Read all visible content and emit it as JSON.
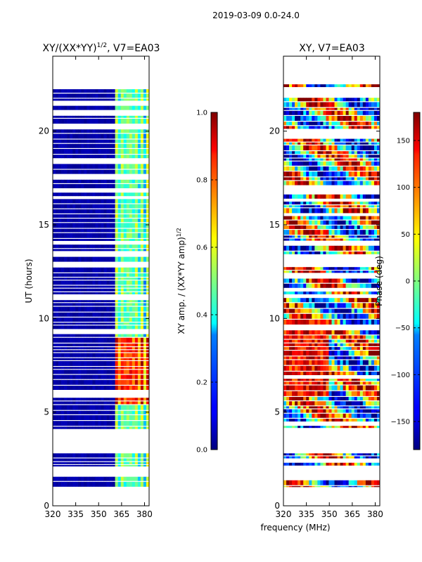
{
  "figure_title": "2019-03-09 0.0-24.0",
  "x_label": "frequency (MHz)",
  "chart_data": [
    {
      "type": "heatmap",
      "title_text": "XY/(XX*YY)",
      "title_exp": "1/2",
      "title_suffix": ", V7=EA03",
      "xlabel": "",
      "ylabel": "UT (hours)",
      "xlim": [
        320,
        383
      ],
      "ylim": [
        0,
        24
      ],
      "xticks": [
        320,
        335,
        350,
        365,
        380
      ],
      "yticks": [
        0,
        5,
        10,
        15,
        20
      ],
      "data_coverage_hours": [
        [
          1.0,
          1.55
        ],
        [
          2.1,
          2.8
        ],
        [
          4.1,
          22.5
        ]
      ],
      "colorbar": {
        "label_text": "XY amp. / (XX*YY amp)",
        "label_exp": "1/2",
        "range": [
          0.0,
          1.0
        ],
        "ticks": [
          0.0,
          0.2,
          0.4,
          0.6,
          0.8,
          1.0
        ],
        "tick_labels": [
          "0.0",
          "0.2",
          "0.4",
          "0.6",
          "0.8",
          "1.0"
        ],
        "colormap": "jet"
      }
    },
    {
      "type": "heatmap",
      "title_text": "XY, V7=EA03",
      "xlabel": "frequency (MHz)",
      "ylabel": "",
      "xlim": [
        320,
        383
      ],
      "ylim": [
        0,
        24
      ],
      "xticks": [
        320,
        335,
        350,
        365,
        380
      ],
      "yticks": [
        0,
        5,
        10,
        15,
        20
      ],
      "data_coverage_hours": [
        [
          1.0,
          1.55
        ],
        [
          2.1,
          2.8
        ],
        [
          4.1,
          22.5
        ]
      ],
      "colorbar": {
        "label_text": "Phase (deg)",
        "range": [
          -180,
          180
        ],
        "ticks": [
          -150,
          -100,
          -50,
          0,
          50,
          100,
          150
        ],
        "tick_labels": [
          "−150",
          "−100",
          "−50",
          "0",
          "50",
          "100",
          "150"
        ],
        "colormap": "jet"
      }
    }
  ]
}
